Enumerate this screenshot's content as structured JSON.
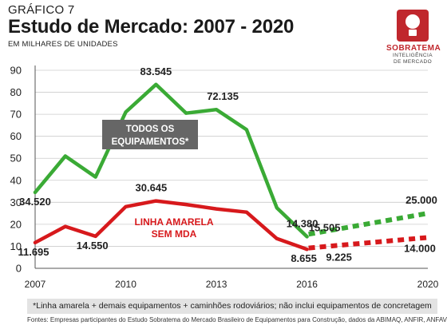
{
  "header": {
    "kicker": "GRÁFICO 7",
    "title": "Estudo de Mercado: 2007 - 2020",
    "subtitle": "EM MILHARES DE UNIDADES"
  },
  "logo": {
    "name": "SOBRATEMA",
    "tagline_line1": "INTELIGÊNCIA",
    "tagline_line2": "DE MERCADO"
  },
  "chart_data": {
    "type": "line",
    "xlim": [
      2007,
      2020
    ],
    "ylim": [
      0,
      90
    ],
    "y_ticks": [
      0,
      10,
      20,
      30,
      40,
      50,
      60,
      70,
      80,
      90
    ],
    "x_ticks": [
      2007,
      2010,
      2013,
      2016,
      2020
    ],
    "grid": true,
    "colors": {
      "green": "#3aaa35",
      "red": "#d7191c",
      "axis": "#555555",
      "grid": "#cccccc"
    },
    "series": [
      {
        "name": "TODOS OS EQUIPAMENTOS*",
        "color": "#3aaa35",
        "actual": [
          [
            2007,
            34.52
          ],
          [
            2008,
            51
          ],
          [
            2009,
            41.5
          ],
          [
            2010,
            71
          ],
          [
            2011,
            83.545
          ],
          [
            2012,
            70.5
          ],
          [
            2013,
            72.135
          ],
          [
            2014,
            63
          ],
          [
            2015,
            27.5
          ],
          [
            2016,
            14.38
          ]
        ],
        "forecast": [
          [
            2016,
            15.505
          ],
          [
            2020,
            25.0
          ]
        ]
      },
      {
        "name": "LINHA AMARELA SEM MDA",
        "color": "#d7191c",
        "actual": [
          [
            2007,
            11.695
          ],
          [
            2008,
            19
          ],
          [
            2009,
            14.55
          ],
          [
            2010,
            28
          ],
          [
            2011,
            30.645
          ],
          [
            2012,
            29
          ],
          [
            2013,
            27
          ],
          [
            2014,
            25.5
          ],
          [
            2015,
            13.5
          ],
          [
            2016,
            8.655
          ]
        ],
        "forecast": [
          [
            2016,
            9.225
          ],
          [
            2020,
            14.0
          ]
        ]
      }
    ],
    "data_labels": [
      {
        "text": "34.520",
        "x": 2007,
        "y": 34.52,
        "color": "#222222"
      },
      {
        "text": "83.545",
        "x": 2011,
        "y": 83.545,
        "color": "#222222"
      },
      {
        "text": "72.135",
        "x": 2013,
        "y": 72.135,
        "color": "#222222"
      },
      {
        "text": "14.380",
        "x": 2016,
        "y": 14.38,
        "color": "#222222"
      },
      {
        "text": "15.505",
        "x": 2016,
        "y": 15.505,
        "color": "#222222"
      },
      {
        "text": "25.000",
        "x": 2020,
        "y": 25.0,
        "color": "#222222"
      },
      {
        "text": "11.695",
        "x": 2007,
        "y": 11.695,
        "color": "#222222"
      },
      {
        "text": "14.550",
        "x": 2009,
        "y": 14.55,
        "color": "#222222"
      },
      {
        "text": "30.645",
        "x": 2011,
        "y": 30.645,
        "color": "#222222"
      },
      {
        "text": "8.655",
        "x": 2016,
        "y": 8.655,
        "color": "#222222"
      },
      {
        "text": "9.225",
        "x": 2016,
        "y": 9.225,
        "color": "#222222"
      },
      {
        "text": "14.000",
        "x": 2020,
        "y": 14.0,
        "color": "#222222"
      }
    ],
    "green_series_label": [
      "TODOS OS",
      "EQUIPAMENTOS*"
    ],
    "red_series_label": [
      "LINHA AMARELA",
      "SEM MDA"
    ]
  },
  "footnote": "*Linha amarela + demais equipamentos + caminhões rodoviários;  não inclui equipamentos de concretagem",
  "source": "Fontes: Empresas participantes do Estudo Sobratema do Mercado Brasileiro de Equipamentos para Construção, dados da ABIMAQ, ANFIR, ANFAVEA"
}
